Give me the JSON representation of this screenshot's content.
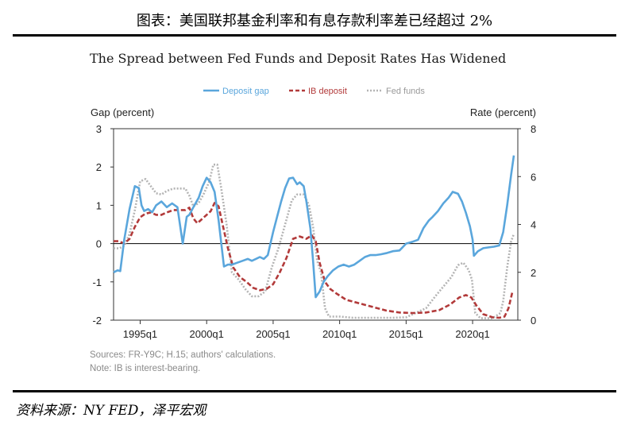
{
  "header": {
    "title": "图表：美国联邦基金利率和有息存款利率差已经超过 2%"
  },
  "footer": {
    "source": "资料来源：NY FED，泽平宏观"
  },
  "chart_data": {
    "type": "line",
    "title": "The Spread between Fed Funds and Deposit Rates Has Widened",
    "ylabel_left": "Gap (percent)",
    "ylabel_right": "Rate (percent)",
    "ylim_left": [
      -2,
      3
    ],
    "ylim_right": [
      0,
      8
    ],
    "yticks_left": [
      "3",
      "2",
      "1",
      "0",
      "-1",
      "-2"
    ],
    "yticks_right": [
      "8",
      "6",
      "4",
      "2",
      "0"
    ],
    "xticks": [
      "1995q1",
      "2000q1",
      "2005q1",
      "2010q1",
      "2015q1",
      "2020q1"
    ],
    "xlim": [
      1993.0,
      2023.4
    ],
    "legend_position": "top",
    "notes": [
      "Sources: FR-Y9C; H.15; authors' calculations.",
      "Note: IB is interest-bearing."
    ],
    "colors": {
      "deposit_gap": "#5aa6dc",
      "ib_deposit": "#b23a3a",
      "fed_funds": "#b4b4b4"
    },
    "series": [
      {
        "name": "Deposit gap",
        "axis": "left",
        "style": "solid",
        "x": [
          1993.0,
          1993.3,
          1993.5,
          1993.8,
          1994.2,
          1994.6,
          1994.9,
          1995.1,
          1995.3,
          1995.6,
          1995.9,
          1996.2,
          1996.6,
          1997.0,
          1997.4,
          1997.8,
          1998.2,
          1998.5,
          1998.7,
          1999.0,
          1999.4,
          1999.7,
          2000.0,
          2000.3,
          2000.6,
          2000.9,
          2001.3,
          2001.6,
          2001.9,
          2002.3,
          2002.7,
          2003.1,
          2003.4,
          2003.7,
          2004.0,
          2004.3,
          2004.6,
          2005.0,
          2005.3,
          2005.6,
          2005.9,
          2006.2,
          2006.5,
          2006.8,
          2007.0,
          2007.3,
          2007.5,
          2007.8,
          2008.0,
          2008.2,
          2008.5,
          2008.8,
          2009.1,
          2009.5,
          2009.9,
          2010.3,
          2010.7,
          2011.1,
          2011.5,
          2011.9,
          2012.3,
          2012.7,
          2013.1,
          2013.5,
          2014.0,
          2014.5,
          2015.0,
          2015.5,
          2015.9,
          2016.3,
          2016.7,
          2017.0,
          2017.4,
          2017.8,
          2018.2,
          2018.5,
          2018.9,
          2019.2,
          2019.5,
          2019.8,
          2020.0,
          2020.1,
          2020.4,
          2020.8,
          2021.2,
          2021.6,
          2022.0,
          2022.3,
          2022.6,
          2022.9,
          2023.1
        ],
        "y": [
          -0.75,
          -0.7,
          -0.72,
          0.1,
          0.9,
          1.5,
          1.45,
          1.0,
          0.85,
          0.9,
          0.82,
          1.0,
          1.1,
          0.95,
          1.05,
          0.95,
          0.0,
          0.7,
          0.75,
          0.95,
          1.2,
          1.5,
          1.72,
          1.6,
          1.35,
          0.6,
          -0.6,
          -0.55,
          -0.55,
          -0.5,
          -0.45,
          -0.4,
          -0.45,
          -0.4,
          -0.35,
          -0.4,
          -0.3,
          0.3,
          0.7,
          1.1,
          1.45,
          1.7,
          1.72,
          1.55,
          1.6,
          1.5,
          1.1,
          0.4,
          -0.45,
          -1.4,
          -1.25,
          -1.0,
          -0.85,
          -0.7,
          -0.6,
          -0.55,
          -0.6,
          -0.55,
          -0.45,
          -0.35,
          -0.3,
          -0.3,
          -0.28,
          -0.25,
          -0.2,
          -0.18,
          0.0,
          0.05,
          0.1,
          0.4,
          0.6,
          0.7,
          0.85,
          1.05,
          1.2,
          1.35,
          1.3,
          1.1,
          0.8,
          0.45,
          0.1,
          -0.32,
          -0.2,
          -0.12,
          -0.1,
          -0.08,
          -0.05,
          0.3,
          1.0,
          1.8,
          2.3
        ]
      },
      {
        "name": "IB deposit",
        "axis": "right",
        "style": "dashed",
        "x": [
          1993.0,
          1993.4,
          1993.8,
          1994.2,
          1994.6,
          1995.0,
          1995.4,
          1995.8,
          1996.2,
          1996.6,
          1997.0,
          1997.5,
          1998.0,
          1998.4,
          1998.7,
          1999.0,
          1999.3,
          1999.6,
          2000.0,
          2000.3,
          2000.6,
          2000.9,
          2001.2,
          2001.6,
          2002.0,
          2002.5,
          2003.0,
          2003.5,
          2004.0,
          2004.5,
          2005.0,
          2005.5,
          2006.0,
          2006.5,
          2007.0,
          2007.5,
          2007.9,
          2008.2,
          2008.5,
          2008.9,
          2009.3,
          2009.8,
          2010.5,
          2011.5,
          2012.5,
          2013.5,
          2014.5,
          2015.5,
          2016.5,
          2017.5,
          2018.3,
          2019.0,
          2019.5,
          2019.9,
          2020.3,
          2020.8,
          2021.5,
          2022.0,
          2022.4,
          2022.7,
          2023.0
        ],
        "y": [
          3.3,
          3.3,
          3.2,
          3.4,
          3.9,
          4.3,
          4.45,
          4.5,
          4.4,
          4.4,
          4.5,
          4.6,
          4.6,
          4.6,
          4.7,
          4.25,
          4.05,
          4.2,
          4.4,
          4.55,
          4.9,
          4.75,
          4.0,
          3.0,
          2.2,
          1.8,
          1.6,
          1.35,
          1.25,
          1.3,
          1.5,
          2.0,
          2.6,
          3.4,
          3.5,
          3.4,
          3.55,
          3.3,
          2.4,
          1.6,
          1.3,
          1.1,
          0.85,
          0.7,
          0.55,
          0.4,
          0.32,
          0.3,
          0.32,
          0.42,
          0.65,
          0.95,
          1.05,
          0.95,
          0.6,
          0.25,
          0.12,
          0.1,
          0.15,
          0.5,
          1.2
        ]
      },
      {
        "name": "Fed funds",
        "axis": "right",
        "style": "dotted",
        "x": [
          1993.0,
          1993.4,
          1993.8,
          1994.2,
          1994.6,
          1995.0,
          1995.4,
          1995.8,
          1996.2,
          1996.6,
          1997.0,
          1997.5,
          1998.0,
          1998.4,
          1998.7,
          1999.0,
          1999.4,
          1999.8,
          2000.2,
          2000.5,
          2000.8,
          2001.1,
          2001.5,
          2001.9,
          2002.4,
          2002.9,
          2003.4,
          2003.9,
          2004.4,
          2004.9,
          2005.4,
          2005.9,
          2006.4,
          2006.8,
          2007.3,
          2007.7,
          2008.0,
          2008.3,
          2008.6,
          2008.9,
          2009.2,
          2010.0,
          2011.0,
          2012.0,
          2013.0,
          2014.0,
          2015.0,
          2015.9,
          2016.5,
          2017.2,
          2017.8,
          2018.4,
          2018.9,
          2019.3,
          2019.7,
          2019.95,
          2020.2,
          2020.6,
          2021.5,
          2022.1,
          2022.3,
          2022.6,
          2022.9,
          2023.1
        ],
        "y": [
          3.0,
          3.0,
          3.1,
          3.6,
          4.6,
          5.8,
          5.9,
          5.6,
          5.3,
          5.25,
          5.4,
          5.5,
          5.5,
          5.5,
          5.2,
          4.75,
          4.9,
          5.3,
          5.8,
          6.5,
          6.5,
          5.5,
          4.0,
          2.0,
          1.7,
          1.3,
          1.0,
          1.0,
          1.2,
          2.2,
          3.0,
          4.0,
          5.0,
          5.25,
          5.25,
          4.8,
          3.9,
          2.5,
          2.0,
          0.5,
          0.15,
          0.15,
          0.1,
          0.1,
          0.1,
          0.1,
          0.12,
          0.35,
          0.5,
          1.0,
          1.4,
          1.8,
          2.3,
          2.4,
          2.1,
          1.7,
          0.3,
          0.08,
          0.08,
          0.3,
          0.8,
          2.2,
          3.3,
          3.6
        ]
      }
    ]
  }
}
